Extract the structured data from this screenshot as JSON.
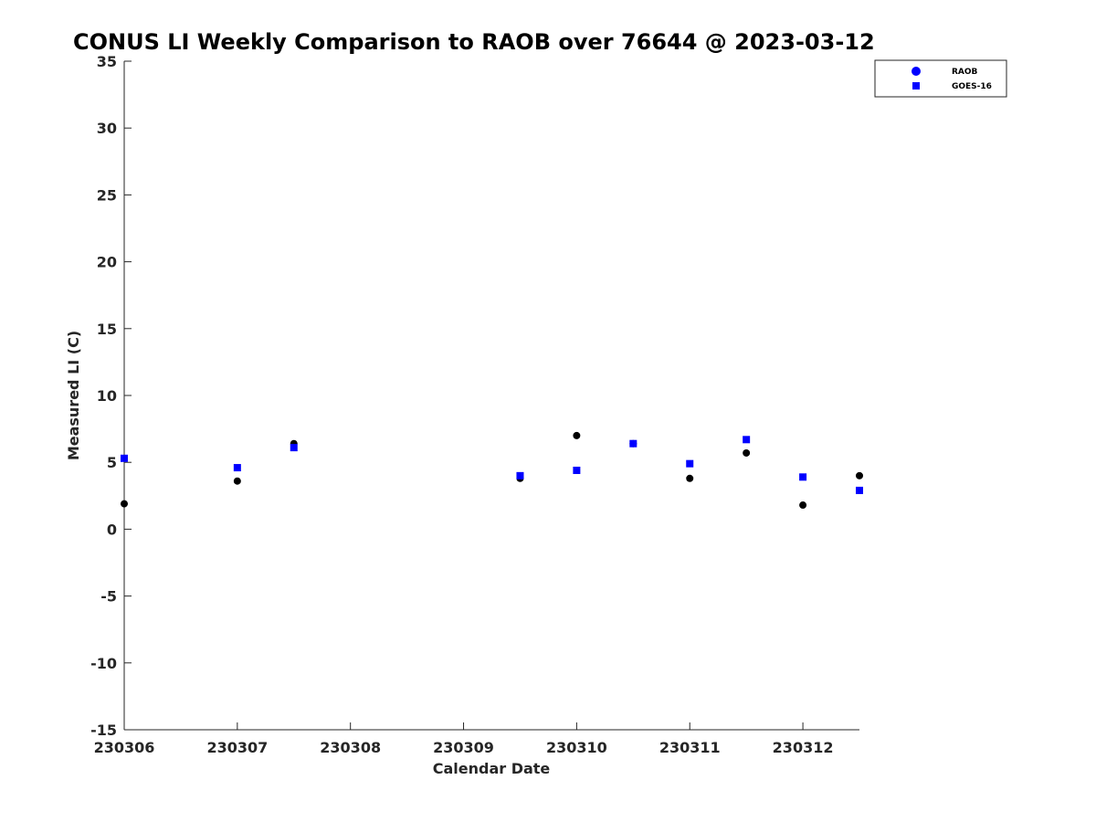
{
  "chart_data": {
    "type": "scatter",
    "title": "CONUS LI Weekly Comparison to RAOB over 76644 @ 2023-03-12",
    "xlabel": "Calendar Date",
    "ylabel": "Measured LI (C)",
    "xlim": [
      230306,
      230312.5
    ],
    "ylim": [
      -15,
      35
    ],
    "x_ticks": [
      230306,
      230307,
      230308,
      230309,
      230310,
      230311,
      230312
    ],
    "x_tick_labels": [
      "230306",
      "230307",
      "230308",
      "230309",
      "230310",
      "230311",
      "230312"
    ],
    "y_ticks": [
      -15,
      -10,
      -5,
      0,
      5,
      10,
      15,
      20,
      25,
      30,
      35
    ],
    "y_tick_labels": [
      "-15",
      "-10",
      "-5",
      "0",
      "5",
      "10",
      "15",
      "20",
      "25",
      "30",
      "35"
    ],
    "grid": false,
    "legend_position": "top-right",
    "series": [
      {
        "name": "RAOB",
        "marker": "circle",
        "color": "#000000",
        "legend_color": "#0000ff",
        "points": [
          {
            "x": 230306,
            "y": 1.9
          },
          {
            "x": 230307,
            "y": 3.6
          },
          {
            "x": 230307.5,
            "y": 6.4
          },
          {
            "x": 230309.5,
            "y": 3.8
          },
          {
            "x": 230310,
            "y": 7.0
          },
          {
            "x": 230310.5,
            "y": 6.4
          },
          {
            "x": 230311,
            "y": 3.8
          },
          {
            "x": 230311.5,
            "y": 5.7
          },
          {
            "x": 230312,
            "y": 1.8
          },
          {
            "x": 230312.5,
            "y": 4.0
          }
        ]
      },
      {
        "name": "GOES-16",
        "marker": "square",
        "color": "#0000ff",
        "legend_color": "#0000ff",
        "points": [
          {
            "x": 230306,
            "y": 5.3
          },
          {
            "x": 230307,
            "y": 4.6
          },
          {
            "x": 230307.5,
            "y": 6.1
          },
          {
            "x": 230309.5,
            "y": 4.0
          },
          {
            "x": 230310,
            "y": 4.4
          },
          {
            "x": 230310.5,
            "y": 6.4
          },
          {
            "x": 230311,
            "y": 4.9
          },
          {
            "x": 230311.5,
            "y": 6.7
          },
          {
            "x": 230312,
            "y": 3.9
          },
          {
            "x": 230312.5,
            "y": 2.9
          }
        ]
      }
    ]
  }
}
